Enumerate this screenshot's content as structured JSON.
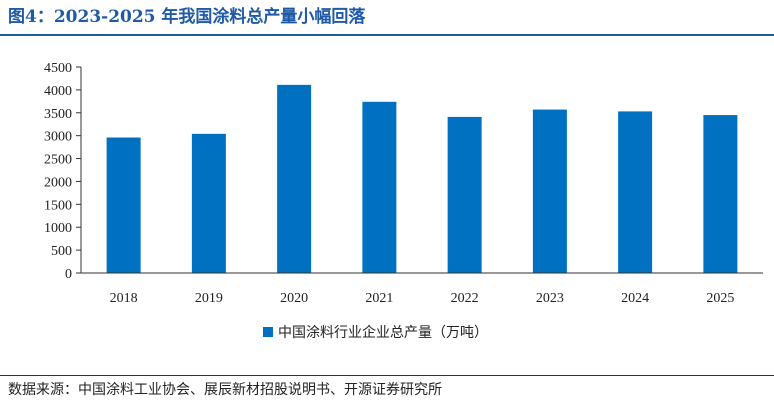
{
  "figure": {
    "title": "图4：2023-2025 年我国涂料总产量小幅回落",
    "source": "数据来源：中国涂料工业协会、展辰新材招股说明书、开源证券研究所"
  },
  "colors": {
    "bar": "#0070c0",
    "title": "#1f5aa6",
    "axis": "#333333"
  },
  "chart_data": {
    "type": "bar",
    "title": "",
    "xlabel": "",
    "ylabel": "",
    "categories": [
      "2018",
      "2019",
      "2020",
      "2021",
      "2022",
      "2023",
      "2024",
      "2025"
    ],
    "series": [
      {
        "name": "中国涂料行业企业总产量（万吨）",
        "values": [
          2960,
          3040,
          4110,
          3740,
          3410,
          3570,
          3530,
          3450
        ]
      }
    ],
    "ylim": [
      0,
      4500
    ],
    "yticks": [
      "0",
      "500",
      "1000",
      "1500",
      "2000",
      "2500",
      "3000",
      "3500",
      "4000",
      "4500"
    ],
    "grid": false,
    "legend_position": "bottom"
  }
}
